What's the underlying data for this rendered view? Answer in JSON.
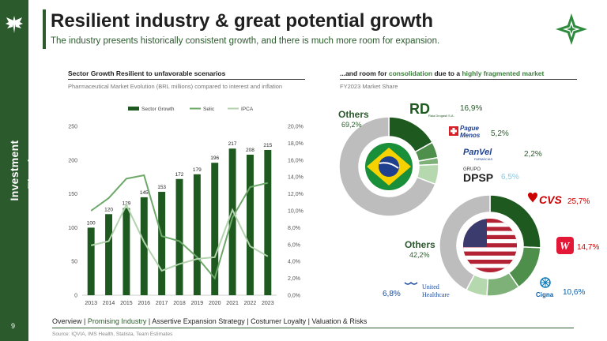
{
  "sidebar": {
    "title": "Investment Thesis",
    "page_number": "9"
  },
  "header": {
    "title": "Resilient industry & great potential growth",
    "subtitle": "The industry presents historically consistent growth, and there is much more room for expansion."
  },
  "left_section": {
    "heading": "Sector Growth Resilient to unfavorable scenarios",
    "subheading": "Pharmaceutical Market Evolution (BRL millions) compared to interest and inflation"
  },
  "right_section": {
    "heading_prefix": "...and room for ",
    "heading_hl1": "consolidation",
    "heading_mid": " due to a ",
    "heading_hl2": "highly fragmented market",
    "subheading": "FY2023 Market Share"
  },
  "chart_data": {
    "type": "bar",
    "title": "Pharmaceutical Market Evolution (BRL millions) compared to interest and inflation",
    "categories": [
      "2013",
      "2014",
      "2015",
      "2016",
      "2017",
      "2018",
      "2019",
      "2020",
      "2021",
      "2022",
      "2023"
    ],
    "series": [
      {
        "name": "Sector Growth",
        "kind": "bar",
        "axis": "left",
        "values": [
          100,
          120,
          129,
          145,
          153,
          172,
          179,
          196,
          217,
          208,
          215
        ]
      },
      {
        "name": "Selic",
        "kind": "line",
        "axis": "right",
        "values": [
          10.0,
          11.5,
          13.8,
          14.2,
          7.0,
          6.4,
          4.5,
          2.0,
          9.2,
          12.8,
          13.3
        ]
      },
      {
        "name": "IPCA",
        "kind": "line",
        "axis": "right",
        "values": [
          5.9,
          6.4,
          10.7,
          6.3,
          2.9,
          3.7,
          4.3,
          4.5,
          10.1,
          5.8,
          4.6
        ]
      }
    ],
    "left_ticks": [
      "0",
      "50",
      "100",
      "150",
      "200",
      "250"
    ],
    "left_ylim": [
      0,
      250
    ],
    "right_ticks": [
      "0,0%",
      "2,0%",
      "4,0%",
      "6,0%",
      "8,0%",
      "10,0%",
      "12,0%",
      "14,0%",
      "16,0%",
      "18,0%",
      "20,0%"
    ],
    "right_ylim": [
      0,
      20
    ],
    "legend_position": "top",
    "colors": {
      "bars": "#1e5a1f",
      "selic": "#6ea86a",
      "ipca": "#b3d3ae"
    }
  },
  "brazil_share": {
    "others_label": "Others",
    "others_value": "69,2%",
    "slices": [
      {
        "name": "RD",
        "pct": 16.9,
        "label": "16,9%",
        "color": "#1e5a1f"
      },
      {
        "name": "Pague Menos",
        "pct": 5.2,
        "label": "5,2%",
        "color": "#4f8f4c"
      },
      {
        "name": "Panvel",
        "pct": 2.2,
        "label": "2,2%",
        "color": "#7db178"
      },
      {
        "name": "DPSP",
        "pct": 6.5,
        "label": "6,5%",
        "color": "#b5d8ae"
      },
      {
        "name": "Others",
        "pct": 69.2,
        "label": "69,2%",
        "color": "#bdbdbd"
      }
    ],
    "logos": {
      "rd": "RD",
      "rd_sub": "Raia Drogasil S.A.",
      "pague": "Pague",
      "menos": "Menos",
      "panvel": "PanVel",
      "panvel_sub": "FARMÁCIAS",
      "grupo": "GRUPO",
      "dpsp": "DPSP"
    }
  },
  "us_share": {
    "others_label": "Others",
    "others_value": "42,2%",
    "slices": [
      {
        "name": "CVS",
        "pct": 25.7,
        "label": "25,7%",
        "color": "#1e5a1f"
      },
      {
        "name": "Walgreens",
        "pct": 14.7,
        "label": "14,7%",
        "color": "#4f8f4c"
      },
      {
        "name": "Cigna",
        "pct": 10.6,
        "label": "10,6%",
        "color": "#7db178"
      },
      {
        "name": "UnitedHealthcare",
        "pct": 6.8,
        "label": "6,8%",
        "color": "#b5d8ae"
      },
      {
        "name": "Others",
        "pct": 42.2,
        "label": "42,2%",
        "color": "#bdbdbd"
      }
    ],
    "logos": {
      "cvs": "CVS",
      "walgreens": "W",
      "cigna": "Cigna",
      "united": "United",
      "healthcare": "Healthcare"
    }
  },
  "nav": {
    "items": [
      "Overview",
      "Promising Industry",
      "Assertive Expansion Strategy",
      "Costumer Loyalty",
      "Valuation & Risks"
    ],
    "separator": " | "
  },
  "source": "Source: IQVIA, IMS Health, Statista, Team Estimates"
}
